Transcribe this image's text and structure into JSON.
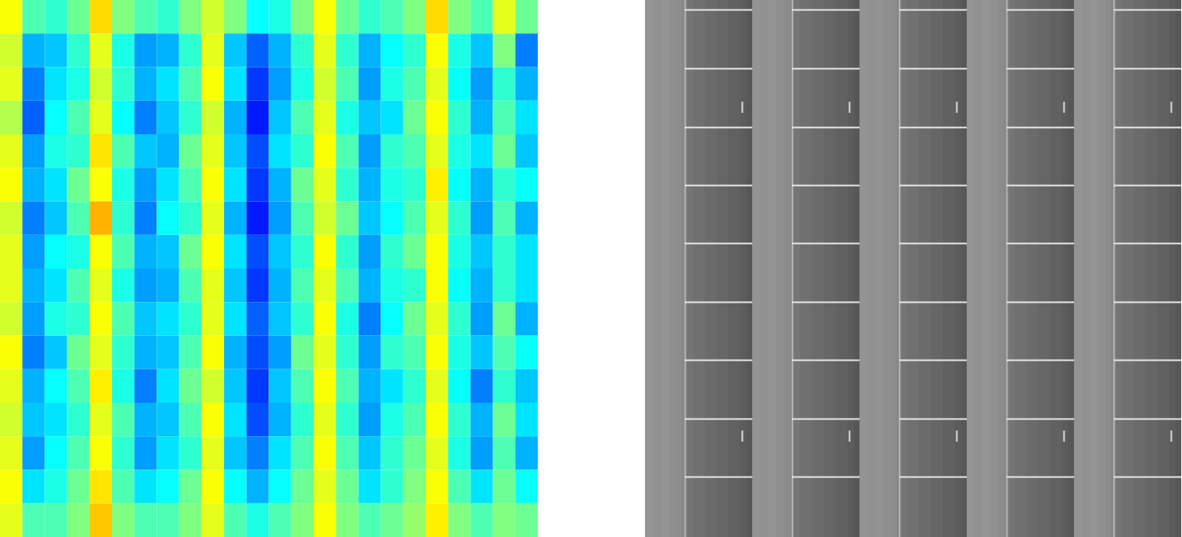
{
  "chart_data": [
    {
      "type": "heatmap",
      "tick_labels": false,
      "value_range": [
        0,
        1
      ],
      "cells": [
        [
          0.62,
          0.45,
          0.42,
          0.48,
          0.66,
          0.5,
          0.45,
          0.42,
          0.5,
          0.58,
          0.5,
          0.38,
          0.4,
          0.5,
          0.62,
          0.48,
          0.42,
          0.45,
          0.5,
          0.66,
          0.5,
          0.45,
          0.6,
          0.48
        ],
        [
          0.58,
          0.3,
          0.32,
          0.42,
          0.6,
          0.4,
          0.28,
          0.3,
          0.42,
          0.6,
          0.32,
          0.22,
          0.3,
          0.42,
          0.6,
          0.42,
          0.3,
          0.38,
          0.42,
          0.62,
          0.4,
          0.32,
          0.5,
          0.25
        ],
        [
          0.6,
          0.25,
          0.35,
          0.4,
          0.58,
          0.42,
          0.3,
          0.35,
          0.45,
          0.62,
          0.35,
          0.18,
          0.28,
          0.4,
          0.58,
          0.45,
          0.28,
          0.4,
          0.45,
          0.6,
          0.38,
          0.28,
          0.42,
          0.3
        ],
        [
          0.55,
          0.22,
          0.38,
          0.45,
          0.6,
          0.38,
          0.25,
          0.32,
          0.42,
          0.58,
          0.3,
          0.15,
          0.32,
          0.45,
          0.6,
          0.4,
          0.32,
          0.35,
          0.48,
          0.62,
          0.42,
          0.3,
          0.45,
          0.35
        ],
        [
          0.6,
          0.28,
          0.4,
          0.42,
          0.65,
          0.45,
          0.32,
          0.3,
          0.48,
          0.6,
          0.32,
          0.2,
          0.35,
          0.42,
          0.62,
          0.45,
          0.28,
          0.42,
          0.45,
          0.6,
          0.4,
          0.35,
          0.48,
          0.32
        ],
        [
          0.62,
          0.3,
          0.35,
          0.48,
          0.62,
          0.4,
          0.28,
          0.35,
          0.45,
          0.62,
          0.35,
          0.18,
          0.3,
          0.48,
          0.6,
          0.42,
          0.3,
          0.4,
          0.42,
          0.64,
          0.38,
          0.3,
          0.42,
          0.38
        ],
        [
          0.58,
          0.25,
          0.32,
          0.45,
          0.7,
          0.42,
          0.25,
          0.38,
          0.42,
          0.6,
          0.3,
          0.15,
          0.28,
          0.45,
          0.58,
          0.48,
          0.32,
          0.38,
          0.45,
          0.6,
          0.42,
          0.28,
          0.45,
          0.3
        ],
        [
          0.6,
          0.28,
          0.38,
          0.4,
          0.62,
          0.45,
          0.3,
          0.32,
          0.48,
          0.62,
          0.35,
          0.2,
          0.32,
          0.42,
          0.62,
          0.42,
          0.28,
          0.42,
          0.48,
          0.62,
          0.4,
          0.32,
          0.42,
          0.35
        ],
        [
          0.6,
          0.3,
          0.35,
          0.45,
          0.6,
          0.4,
          0.28,
          0.3,
          0.45,
          0.6,
          0.32,
          0.18,
          0.3,
          0.45,
          0.6,
          0.45,
          0.3,
          0.4,
          0.42,
          0.62,
          0.38,
          0.3,
          0.42,
          0.35
        ],
        [
          0.58,
          0.28,
          0.4,
          0.42,
          0.62,
          0.45,
          0.32,
          0.35,
          0.42,
          0.6,
          0.35,
          0.22,
          0.32,
          0.42,
          0.62,
          0.4,
          0.25,
          0.38,
          0.48,
          0.6,
          0.42,
          0.28,
          0.48,
          0.3
        ],
        [
          0.62,
          0.25,
          0.32,
          0.48,
          0.6,
          0.42,
          0.3,
          0.32,
          0.45,
          0.62,
          0.3,
          0.2,
          0.28,
          0.48,
          0.6,
          0.42,
          0.28,
          0.42,
          0.45,
          0.62,
          0.4,
          0.32,
          0.45,
          0.38
        ],
        [
          0.6,
          0.3,
          0.38,
          0.45,
          0.64,
          0.4,
          0.25,
          0.35,
          0.48,
          0.58,
          0.32,
          0.18,
          0.32,
          0.45,
          0.62,
          0.45,
          0.3,
          0.35,
          0.42,
          0.6,
          0.38,
          0.25,
          0.42,
          0.32
        ],
        [
          0.58,
          0.32,
          0.35,
          0.42,
          0.6,
          0.45,
          0.3,
          0.32,
          0.45,
          0.62,
          0.35,
          0.2,
          0.3,
          0.42,
          0.6,
          0.42,
          0.28,
          0.4,
          0.45,
          0.62,
          0.42,
          0.3,
          0.48,
          0.35
        ],
        [
          0.6,
          0.28,
          0.38,
          0.45,
          0.62,
          0.42,
          0.28,
          0.35,
          0.42,
          0.6,
          0.32,
          0.25,
          0.35,
          0.45,
          0.62,
          0.45,
          0.32,
          0.42,
          0.48,
          0.6,
          0.4,
          0.28,
          0.45,
          0.3
        ],
        [
          0.62,
          0.35,
          0.4,
          0.48,
          0.65,
          0.45,
          0.35,
          0.38,
          0.48,
          0.62,
          0.38,
          0.3,
          0.38,
          0.48,
          0.6,
          0.48,
          0.35,
          0.42,
          0.5,
          0.62,
          0.45,
          0.35,
          0.48,
          0.38
        ],
        [
          0.6,
          0.45,
          0.45,
          0.5,
          0.68,
          0.5,
          0.45,
          0.45,
          0.5,
          0.6,
          0.45,
          0.4,
          0.45,
          0.5,
          0.62,
          0.5,
          0.45,
          0.48,
          0.52,
          0.64,
          0.5,
          0.45,
          0.5,
          0.48
        ]
      ]
    },
    {
      "type": "image",
      "tick_labels": false,
      "panels": 5,
      "xlim": [
        0,
        135
      ],
      "ylim": [
        0,
        676
      ],
      "column_edges": [
        0,
        10,
        20,
        30,
        40,
        47,
        50,
        53,
        60,
        75,
        90,
        105,
        120,
        128,
        135
      ],
      "column_values": [
        0.58,
        0.57,
        0.58,
        0.56,
        0.55,
        0.53,
        0.5,
        0.46,
        0.44,
        0.42,
        0.4,
        0.38,
        0.36,
        0.34
      ],
      "vertical_line": 50,
      "horizontal_lines": [
        12,
        86,
        160,
        233,
        306,
        380,
        453,
        527,
        600
      ],
      "dashes": [
        {
          "x": 122,
          "y1": 128,
          "y2": 142
        },
        {
          "x": 122,
          "y1": 542,
          "y2": 556
        }
      ]
    }
  ]
}
